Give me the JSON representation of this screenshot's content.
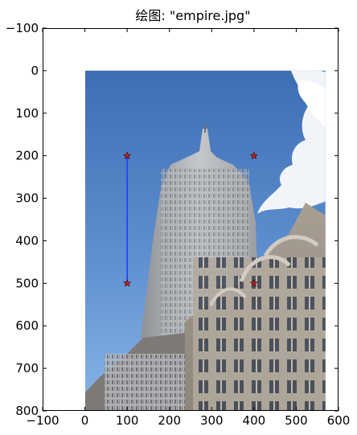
{
  "chart_data": {
    "type": "scatter",
    "title": "绘图: \"empire.jpg\"",
    "xlabel": "",
    "ylabel": "",
    "xlim": [
      -100,
      600
    ],
    "ylim": [
      800,
      -100
    ],
    "y_inverted": true,
    "xticks": [
      "−100",
      "0",
      "100",
      "200",
      "300",
      "400",
      "500",
      "600"
    ],
    "xtick_values": [
      -100,
      0,
      100,
      200,
      300,
      400,
      500,
      600
    ],
    "yticks": [
      "−100",
      "0",
      "100",
      "200",
      "300",
      "400",
      "500",
      "600",
      "700",
      "800"
    ],
    "ytick_values": [
      -100,
      0,
      100,
      200,
      300,
      400,
      500,
      600,
      700,
      800
    ],
    "image_extent": {
      "x": [
        0,
        569
      ],
      "y": [
        0,
        800
      ]
    },
    "points": [
      {
        "x": 100,
        "y": 200
      },
      {
        "x": 100,
        "y": 500
      },
      {
        "x": 400,
        "y": 200
      },
      {
        "x": 400,
        "y": 500
      }
    ],
    "line": {
      "x": [
        100,
        100
      ],
      "y": [
        200,
        500
      ]
    },
    "marker": "star",
    "marker_color": "#c81e1e",
    "line_color": "#1f3fff",
    "grid": false
  }
}
